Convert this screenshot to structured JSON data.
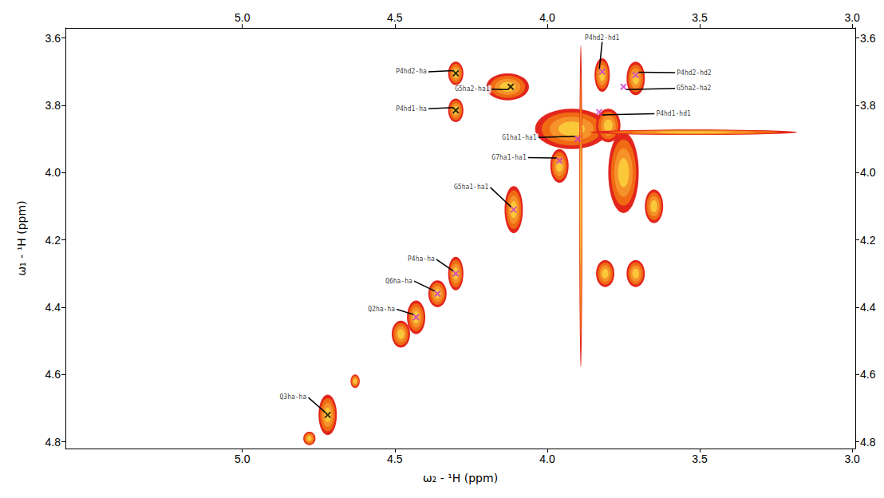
{
  "chart_data": {
    "type": "scatter",
    "x_label": "ω₂ - ¹H (ppm)",
    "y_label": "ω₁ - ¹H (ppm)",
    "xlim": [
      5.58,
      2.99
    ],
    "ylim": [
      4.82,
      3.57
    ],
    "xticks": [
      {
        "value": 5,
        "label": "5.0"
      },
      4.5,
      {
        "value": 4,
        "label": "4.0"
      },
      3.5,
      {
        "value": 3,
        "label": "3.0"
      }
    ],
    "yticks": [
      3.6,
      3.8,
      {
        "value": 4,
        "label": "4.0"
      },
      4.2,
      4.4,
      4.6,
      4.8
    ],
    "grid": false,
    "marker": "x",
    "annotations": [
      "P4hd2-ha",
      "P4hd1-ha",
      "G5ha2-ha1",
      "P4hd2-hd1",
      "P4hd2-hd2",
      "G5ha2-ha2",
      "P4hd1-hd1",
      "G1ha1-ha1",
      "G7ha1-ha1",
      "G5ha1-ha1",
      "P4ha-ha",
      "Q6ha-ha",
      "Q2ha-ha",
      "Q3ha-ha"
    ],
    "x": [
      4.3,
      4.3,
      4.12,
      3.82,
      3.71,
      3.75,
      3.83,
      3.9,
      3.96,
      4.11,
      4.3,
      4.36,
      4.43,
      4.72
    ],
    "values": [
      3.705,
      3.815,
      3.745,
      3.7,
      3.71,
      3.745,
      3.82,
      3.9,
      3.965,
      4.11,
      4.3,
      4.36,
      4.43,
      4.72
    ],
    "colors": [
      "#000000",
      "#000000",
      "#000000",
      "#cc33cc",
      "#cc33cc",
      "#cc33cc",
      "#cc33cc",
      "#cc33cc",
      "#cc33cc",
      "#cc33cc",
      "#cc33cc",
      "#cc33cc",
      "#cc33cc",
      "#000000"
    ],
    "contours": [
      {
        "x": 4.3,
        "y": 3.705,
        "dx": 0.025,
        "dy": 0.035
      },
      {
        "x": 4.3,
        "y": 3.815,
        "dx": 0.025,
        "dy": 0.035
      },
      {
        "x": 4.13,
        "y": 3.745,
        "dx": 0.07,
        "dy": 0.04
      },
      {
        "x": 3.82,
        "y": 3.71,
        "dx": 0.025,
        "dy": 0.05
      },
      {
        "x": 3.71,
        "y": 3.72,
        "dx": 0.03,
        "dy": 0.05
      },
      {
        "x": 3.92,
        "y": 3.87,
        "dx": 0.12,
        "dy": 0.06
      },
      {
        "x": 3.8,
        "y": 3.86,
        "dx": 0.04,
        "dy": 0.05
      },
      {
        "x": 4.11,
        "y": 4.11,
        "dx": 0.03,
        "dy": 0.07
      },
      {
        "x": 3.96,
        "y": 3.98,
        "dx": 0.03,
        "dy": 0.05
      },
      {
        "x": 3.75,
        "y": 4.0,
        "dx": 0.05,
        "dy": 0.12
      },
      {
        "x": 3.65,
        "y": 4.1,
        "dx": 0.03,
        "dy": 0.05
      },
      {
        "x": 4.3,
        "y": 4.3,
        "dx": 0.025,
        "dy": 0.05
      },
      {
        "x": 4.36,
        "y": 4.36,
        "dx": 0.03,
        "dy": 0.04
      },
      {
        "x": 4.43,
        "y": 4.43,
        "dx": 0.03,
        "dy": 0.05
      },
      {
        "x": 4.48,
        "y": 4.48,
        "dx": 0.03,
        "dy": 0.04
      },
      {
        "x": 4.63,
        "y": 4.62,
        "dx": 0.015,
        "dy": 0.02
      },
      {
        "x": 4.72,
        "y": 4.72,
        "dx": 0.03,
        "dy": 0.06
      },
      {
        "x": 4.78,
        "y": 4.79,
        "dx": 0.02,
        "dy": 0.02
      },
      {
        "x": 3.81,
        "y": 4.3,
        "dx": 0.03,
        "dy": 0.04
      },
      {
        "x": 3.71,
        "y": 4.3,
        "dx": 0.03,
        "dy": 0.04
      },
      {
        "x": 3.52,
        "y": 3.88,
        "dx": 0.34,
        "dy": 0.008
      },
      {
        "x": 3.89,
        "y": 4.1,
        "dx": 0.005,
        "dy": 0.48
      }
    ]
  }
}
